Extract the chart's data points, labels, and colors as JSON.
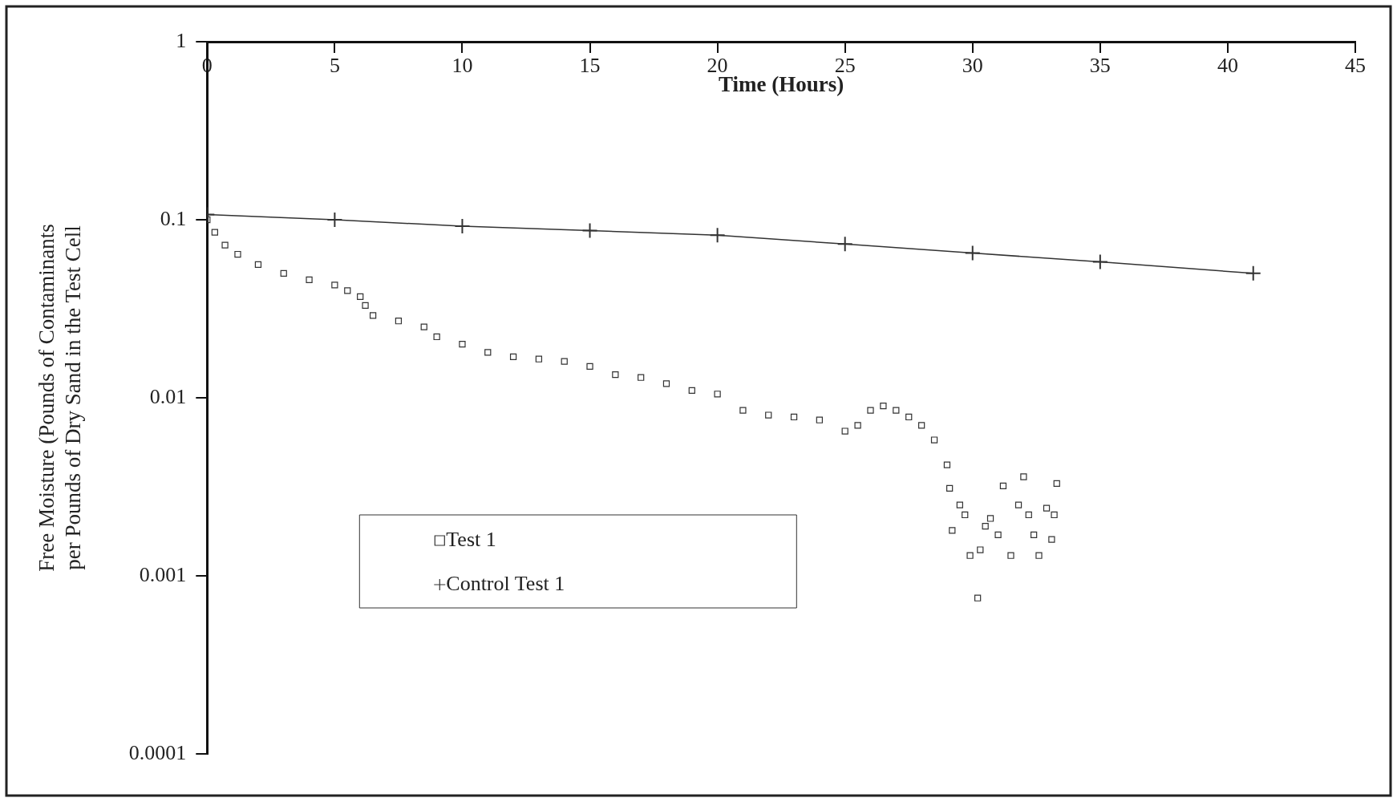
{
  "chart_data": {
    "type": "scatter",
    "xlabel": "Time (Hours)",
    "ylabel": "Free Moisture (Pounds of Contaminants per Pounds of Dry Sand in the Test Cell",
    "log": "y",
    "xlim": [
      0,
      45
    ],
    "xticks": [
      0,
      5,
      10,
      15,
      20,
      25,
      30,
      35,
      40,
      45
    ],
    "ylim": [
      0.0001,
      1
    ],
    "yticks": [
      0.0001,
      0.001,
      0.01,
      0.1,
      1
    ],
    "grid": false,
    "legend": "bottom left",
    "series": [
      {
        "name": "Test 1",
        "color": "#333333",
        "marker": "square",
        "x": [
          0,
          0.3,
          0.7,
          1.2,
          2,
          3,
          4,
          5,
          5.5,
          6,
          6.2,
          6.5,
          7.5,
          8.5,
          9,
          10,
          11,
          12,
          13,
          14,
          15,
          16,
          17,
          18,
          19,
          20,
          21,
          22,
          23,
          24,
          25,
          25.5,
          26,
          26.5,
          27,
          27.5,
          28,
          28.5,
          29,
          29.1,
          29.2,
          29.5,
          29.7,
          29.9,
          30.2,
          30.3,
          30.5,
          30.7,
          31,
          31.2,
          31.5,
          31.8,
          32,
          32.2,
          32.4,
          32.6,
          32.9,
          33.1,
          33.3,
          33.2
        ],
        "values": [
          0.1,
          0.085,
          0.072,
          0.064,
          0.056,
          0.05,
          0.046,
          0.043,
          0.04,
          0.037,
          0.033,
          0.029,
          0.027,
          0.025,
          0.022,
          0.02,
          0.018,
          0.017,
          0.0165,
          0.016,
          0.015,
          0.0135,
          0.013,
          0.012,
          0.011,
          0.0105,
          0.0085,
          0.008,
          0.0078,
          0.0075,
          0.0065,
          0.007,
          0.0085,
          0.009,
          0.0085,
          0.0078,
          0.007,
          0.0058,
          0.0042,
          0.0031,
          0.0018,
          0.0025,
          0.0022,
          0.0013,
          0.00075,
          0.0014,
          0.0019,
          0.0021,
          0.0017,
          0.0032,
          0.0013,
          0.0025,
          0.0036,
          0.0022,
          0.0017,
          0.0013,
          0.0024,
          0.0016,
          0.0033,
          0.0022
        ]
      },
      {
        "name": "Control Test 1",
        "type": "line",
        "color": "#333333",
        "marker": "cross",
        "x": [
          0,
          5,
          10,
          15,
          20,
          25,
          30,
          35,
          41
        ],
        "values": [
          0.107,
          0.1,
          0.092,
          0.087,
          0.082,
          0.073,
          0.065,
          0.058,
          0.05
        ]
      }
    ]
  }
}
